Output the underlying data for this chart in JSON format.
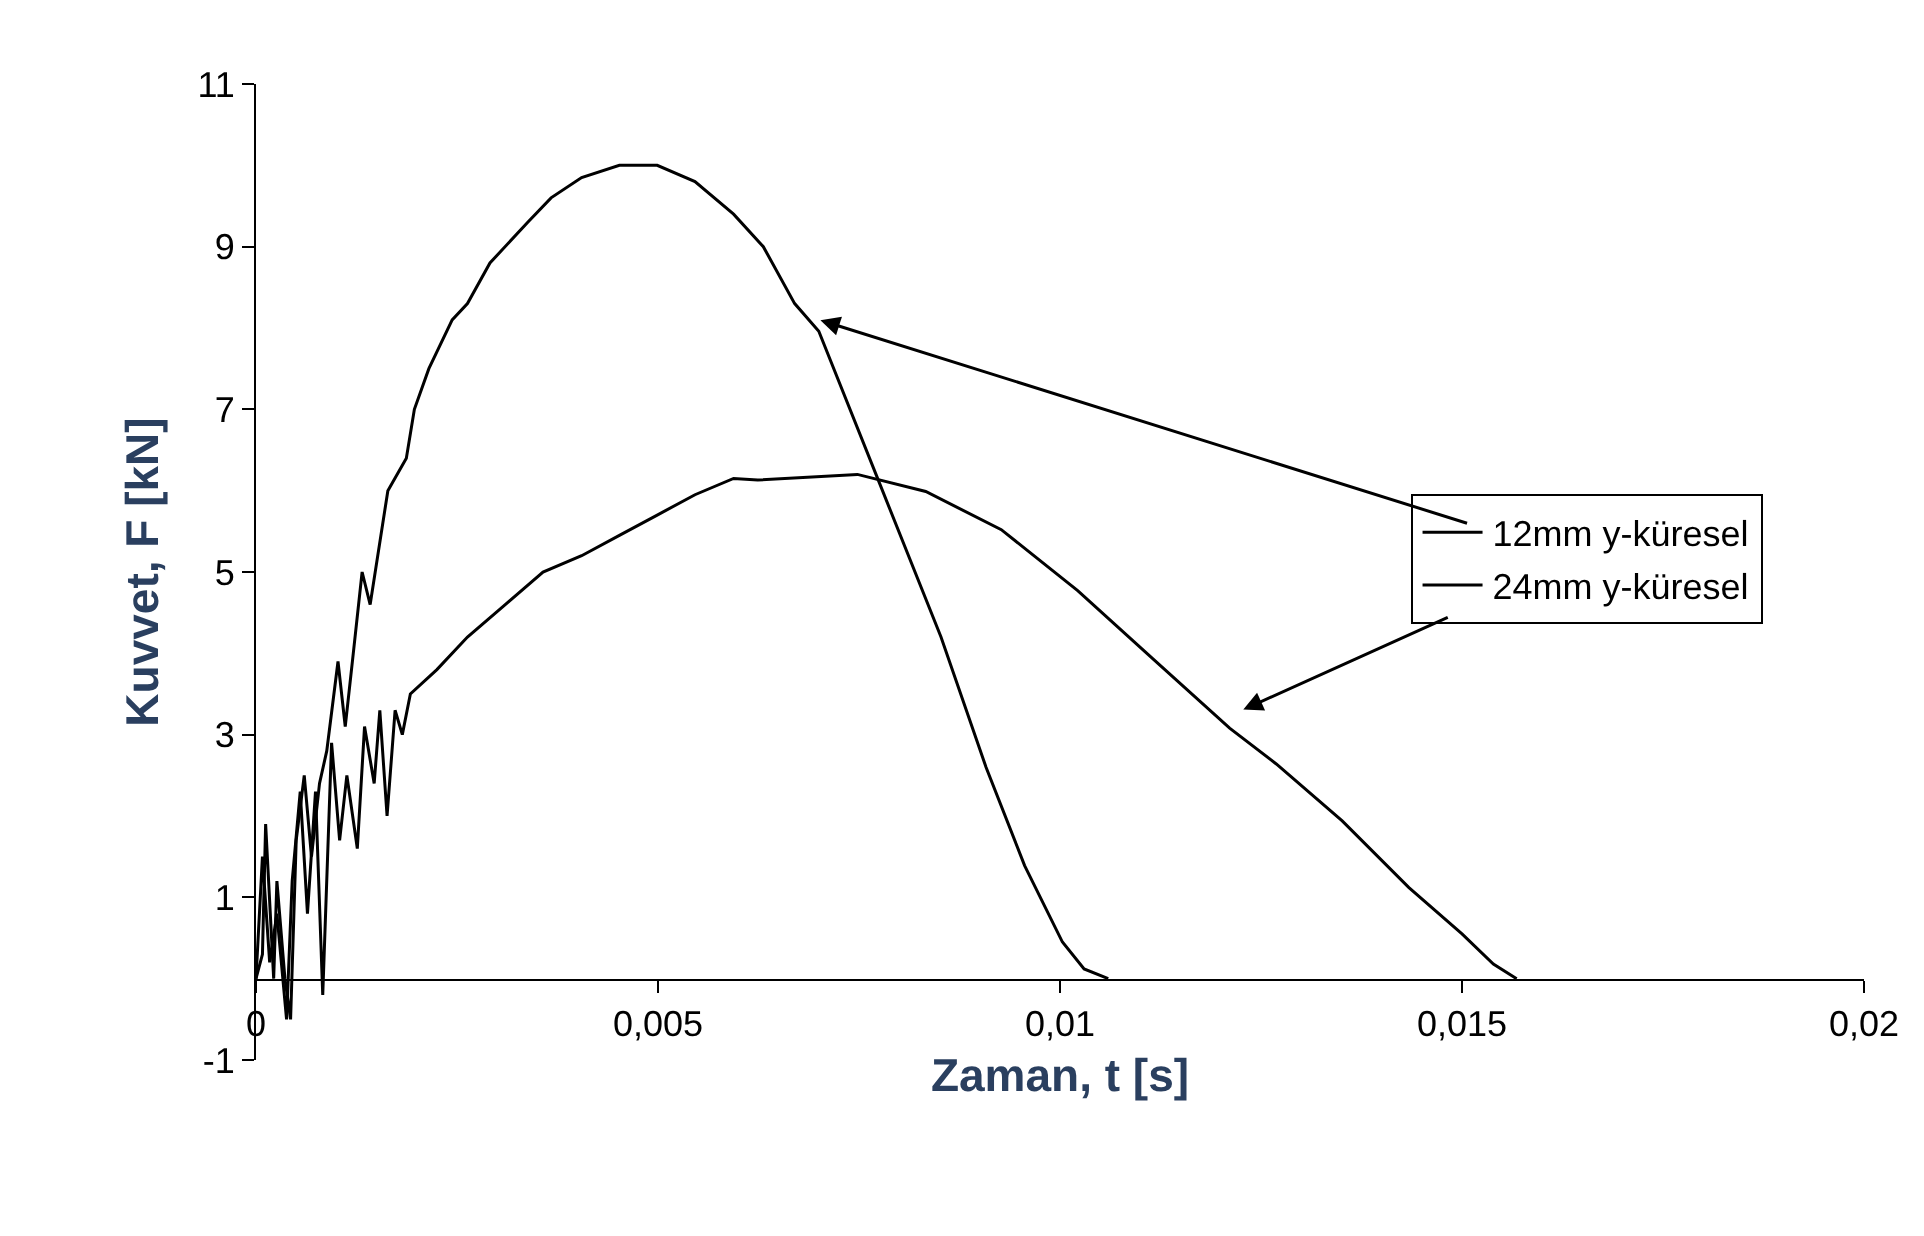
{
  "chart_data": {
    "type": "line",
    "xlabel": "Zaman, t [s]",
    "ylabel": "Kuvvet, F [kN]",
    "xlim": [
      0,
      0.02
    ],
    "xticks": [
      0,
      {
        "value": 0.005,
        "label": "0,005"
      },
      {
        "value": 0.01,
        "label": "0,01"
      },
      {
        "value": 0.015,
        "label": "0,015"
      },
      {
        "value": 0.02,
        "label": "0,02"
      }
    ],
    "ylim": [
      -1,
      11
    ],
    "yticks": [
      -1,
      1,
      3,
      5,
      7,
      9,
      11
    ],
    "grid": false,
    "legend": "right",
    "marker": "none",
    "line_style": "solid",
    "series": [
      {
        "name": "12mm y-küresel",
        "color": "#000000",
        "x": [
          0,
          8e-05,
          0.00012,
          0.00022,
          0.00026,
          0.00036,
          0.00043,
          0.0005,
          0.0006,
          0.00069,
          0.00079,
          0.00088,
          0.00102,
          0.00111,
          0.00121,
          0.00132,
          0.00142,
          0.00164,
          0.00187,
          0.00197,
          0.00215,
          0.00244,
          0.00263,
          0.00291,
          0.00338,
          0.00367,
          0.00405,
          0.00452,
          0.00499,
          0.00546,
          0.00594,
          0.00631,
          0.0067,
          0.007,
          0.00776,
          0.00852,
          0.00908,
          0.00956,
          0.01003,
          0.0103,
          0.0106
        ],
        "values": [
          0,
          0.3,
          1.9,
          0,
          1.2,
          0,
          -0.5,
          1.7,
          2.5,
          1.5,
          2.4,
          2.8,
          3.9,
          3.1,
          4.0,
          5.0,
          4.6,
          6.0,
          6.4,
          7.0,
          7.5,
          8.1,
          8.3,
          8.8,
          9.3,
          9.6,
          9.85,
          10.0,
          10.0,
          9.8,
          9.4,
          9.0,
          8.3,
          7.96,
          6.08,
          4.2,
          2.6,
          1.39,
          0.45,
          0.12,
          0
        ]
      },
      {
        "name": "24mm y-küresel",
        "color": "#000000",
        "x": [
          0,
          8e-05,
          0.00017,
          0.00026,
          0.00038,
          0.00045,
          0.00055,
          0.00064,
          0.00074,
          0.00083,
          0.00094,
          0.00104,
          0.00113,
          0.00126,
          0.00135,
          0.00147,
          0.00154,
          0.00163,
          0.00173,
          0.00182,
          0.00192,
          0.00225,
          0.00263,
          0.0031,
          0.00357,
          0.00405,
          0.00452,
          0.00499,
          0.00546,
          0.00594,
          0.00624,
          0.00748,
          0.00833,
          0.00927,
          0.01022,
          0.01117,
          0.01211,
          0.01269,
          0.01351,
          0.01434,
          0.015,
          0.01539,
          0.01568
        ],
        "values": [
          0,
          1.5,
          0.2,
          0.8,
          -0.5,
          1.2,
          2.3,
          0.8,
          2.3,
          -0.2,
          2.9,
          1.7,
          2.5,
          1.6,
          3.1,
          2.4,
          3.3,
          2.0,
          3.3,
          3.0,
          3.5,
          3.8,
          4.2,
          4.6,
          5.0,
          5.2,
          5.45,
          5.7,
          5.95,
          6.15,
          6.13,
          6.2,
          5.99,
          5.52,
          4.77,
          3.92,
          3.08,
          2.64,
          1.94,
          1.12,
          0.55,
          0.18,
          0
        ]
      }
    ]
  }
}
